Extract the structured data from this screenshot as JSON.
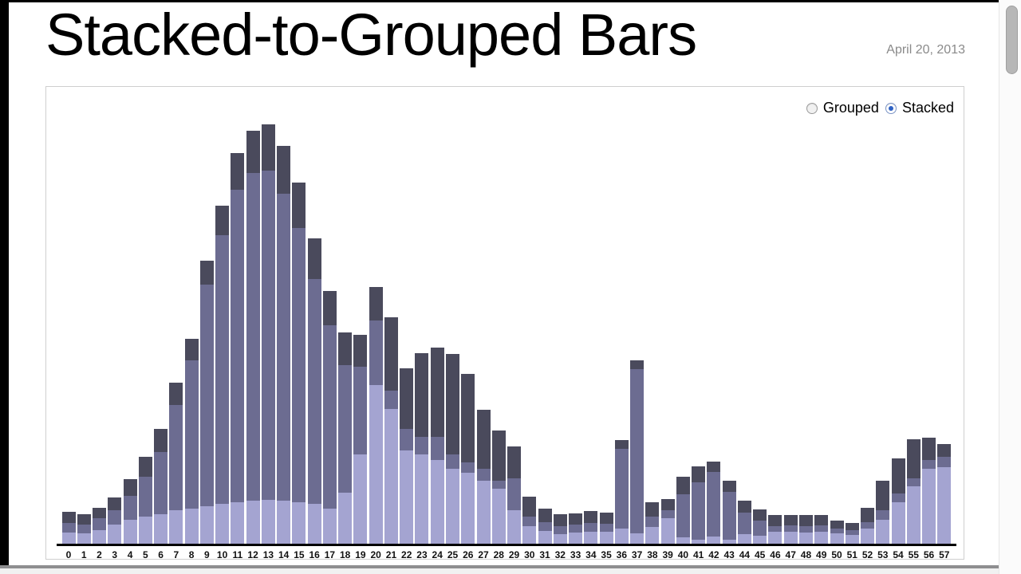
{
  "page": {
    "title": "Stacked-to-Grouped Bars",
    "date": "April 20, 2013"
  },
  "controls": {
    "grouped_label": "Grouped",
    "stacked_label": "Stacked",
    "selected": "Stacked"
  },
  "colors": {
    "layer_bottom": "#a4a4d1",
    "layer_middle": "#6c6c91",
    "layer_top": "#4a4a5c",
    "panel_border": "#cfcfcf",
    "axis": "#000000",
    "date_text": "#8a8a8a",
    "radio_selected_dot": "#2f62c4"
  },
  "chart_data": {
    "type": "bar",
    "stacked": true,
    "title": "Stacked-to-Grouped Bars",
    "xlabel": "",
    "ylabel": "",
    "grid": false,
    "legend_position": "none",
    "units": "pixels read from screenshot (no numeric y-axis shown)",
    "ylim": [
      0,
      540
    ],
    "categories": [
      "0",
      "1",
      "2",
      "3",
      "4",
      "5",
      "6",
      "7",
      "8",
      "9",
      "10",
      "11",
      "12",
      "13",
      "14",
      "15",
      "16",
      "17",
      "18",
      "19",
      "20",
      "21",
      "22",
      "23",
      "24",
      "25",
      "26",
      "27",
      "28",
      "29",
      "30",
      "31",
      "32",
      "33",
      "34",
      "35",
      "36",
      "37",
      "38",
      "39",
      "40",
      "41",
      "42",
      "43",
      "44",
      "45",
      "46",
      "47",
      "48",
      "49",
      "50",
      "51",
      "52",
      "53",
      "54",
      "55",
      "56",
      "57"
    ],
    "series": [
      {
        "name": "bottom",
        "color": "#a4a4d1",
        "values": [
          15,
          14,
          18,
          25,
          31,
          35,
          38,
          43,
          45,
          48,
          51,
          53,
          55,
          56,
          55,
          53,
          51,
          45,
          65,
          113,
          200,
          170,
          118,
          113,
          106,
          95,
          90,
          80,
          70,
          43,
          23,
          17,
          13,
          15,
          16,
          16,
          20,
          14,
          22,
          33,
          9,
          6,
          10,
          6,
          13,
          11,
          16,
          16,
          15,
          16,
          14,
          12,
          20,
          31,
          53,
          73,
          95,
          97
        ]
      },
      {
        "name": "middle",
        "color": "#6c6c91",
        "values": [
          12,
          11,
          15,
          18,
          30,
          50,
          78,
          132,
          186,
          278,
          337,
          392,
          411,
          413,
          385,
          344,
          282,
          230,
          160,
          110,
          81,
          23,
          27,
          22,
          29,
          18,
          13,
          15,
          10,
          40,
          12,
          11,
          10,
          10,
          11,
          10,
          100,
          206,
          13,
          10,
          54,
          72,
          81,
          60,
          27,
          19,
          7,
          8,
          8,
          8,
          6,
          6,
          8,
          12,
          11,
          10,
          11,
          13
        ]
      },
      {
        "name": "top",
        "color": "#4a4a5c",
        "values": [
          14,
          13,
          13,
          16,
          21,
          25,
          29,
          28,
          27,
          30,
          37,
          46,
          53,
          58,
          60,
          57,
          51,
          43,
          41,
          40,
          42,
          92,
          76,
          105,
          112,
          126,
          111,
          74,
          63,
          40,
          25,
          17,
          15,
          14,
          15,
          14,
          11,
          11,
          18,
          14,
          22,
          20,
          13,
          14,
          15,
          14,
          14,
          13,
          14,
          13,
          10,
          9,
          18,
          37,
          44,
          49,
          28,
          16
        ]
      }
    ]
  }
}
